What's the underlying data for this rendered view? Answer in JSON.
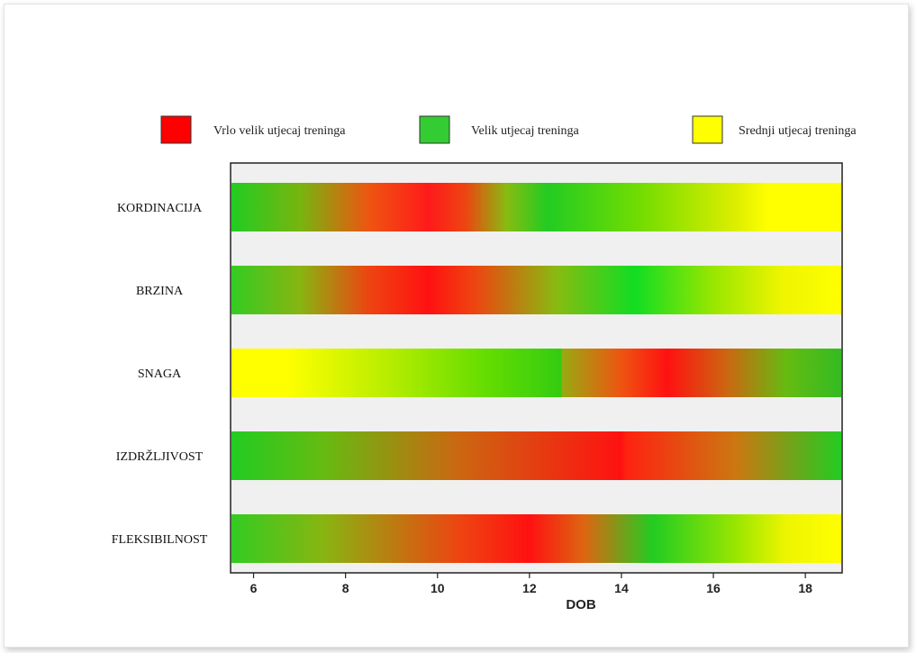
{
  "chart_data": {
    "type": "heatmap",
    "title": "",
    "xlabel": "DOB",
    "ylabel": "",
    "xlim": [
      5.5,
      18.8
    ],
    "x_ticks": [
      6,
      8,
      10,
      12,
      14,
      16,
      18
    ],
    "grid": false,
    "legend_position": "top",
    "legend": [
      {
        "label": "Vrlo velik utjecaj treninga",
        "color": "#ff0000"
      },
      {
        "label": "Velik utjecaj treninga",
        "color": "#33cc33"
      },
      {
        "label": "Srednji utjecaj treninga",
        "color": "#ffff00"
      }
    ],
    "categories": [
      "KORDINACIJA",
      "BRZINA",
      "SNAGA",
      "IZDRŽLJIVOST",
      "FLEKSIBILNOST"
    ],
    "series": [
      {
        "name": "KORDINACIJA",
        "stops": [
          {
            "x": 5.5,
            "color": "#22cc22"
          },
          {
            "x": 7.0,
            "color": "#77b50f"
          },
          {
            "x": 8.5,
            "color": "#ee5511"
          },
          {
            "x": 9.8,
            "color": "#ff1a1a"
          },
          {
            "x": 10.6,
            "color": "#ee4411"
          },
          {
            "x": 11.5,
            "color": "#88bb11"
          },
          {
            "x": 12.4,
            "color": "#22cc22"
          },
          {
            "x": 14.5,
            "color": "#77dd00"
          },
          {
            "x": 16.5,
            "color": "#ddee00"
          },
          {
            "x": 17.2,
            "color": "#ffff00"
          },
          {
            "x": 18.8,
            "color": "#ffff00"
          }
        ]
      },
      {
        "name": "BRZINA",
        "stops": [
          {
            "x": 5.5,
            "color": "#33cc22"
          },
          {
            "x": 7.0,
            "color": "#88b511"
          },
          {
            "x": 8.5,
            "color": "#ee4411"
          },
          {
            "x": 9.8,
            "color": "#ff1111"
          },
          {
            "x": 10.8,
            "color": "#ee4411"
          },
          {
            "x": 12.6,
            "color": "#88bb11"
          },
          {
            "x": 14.3,
            "color": "#11dd22"
          },
          {
            "x": 16.0,
            "color": "#99e600"
          },
          {
            "x": 17.5,
            "color": "#eef500"
          },
          {
            "x": 18.8,
            "color": "#ffff00"
          }
        ]
      },
      {
        "name": "SNAGA",
        "stops": [
          {
            "x": 5.5,
            "color": "#ffff00"
          },
          {
            "x": 6.7,
            "color": "#ffff00"
          },
          {
            "x": 8.8,
            "color": "#bbee00"
          },
          {
            "x": 11.0,
            "color": "#66dd00"
          },
          {
            "x": 12.7,
            "color": "#33cc11"
          },
          {
            "x": 12.71,
            "color": "#99aa11"
          },
          {
            "x": 14.0,
            "color": "#ee5511"
          },
          {
            "x": 15.0,
            "color": "#ff1111"
          },
          {
            "x": 16.3,
            "color": "#cc6611"
          },
          {
            "x": 17.6,
            "color": "#66bb11"
          },
          {
            "x": 18.8,
            "color": "#33bb22"
          }
        ]
      },
      {
        "name": "IZDRŽLJIVOST",
        "stops": [
          {
            "x": 5.5,
            "color": "#22cc22"
          },
          {
            "x": 7.5,
            "color": "#66bb11"
          },
          {
            "x": 10.5,
            "color": "#cc6611"
          },
          {
            "x": 14.0,
            "color": "#ff1111"
          },
          {
            "x": 14.1,
            "color": "#ff2211"
          },
          {
            "x": 16.5,
            "color": "#cc7711"
          },
          {
            "x": 18.8,
            "color": "#22cc22"
          }
        ]
      },
      {
        "name": "FLEKSIBILNOST",
        "stops": [
          {
            "x": 5.5,
            "color": "#33cc22"
          },
          {
            "x": 7.5,
            "color": "#88b511"
          },
          {
            "x": 10.5,
            "color": "#ee4411"
          },
          {
            "x": 12.0,
            "color": "#ff1111"
          },
          {
            "x": 13.2,
            "color": "#dd6611"
          },
          {
            "x": 14.7,
            "color": "#22cc22"
          },
          {
            "x": 16.5,
            "color": "#99e600"
          },
          {
            "x": 17.6,
            "color": "#eef500"
          },
          {
            "x": 18.8,
            "color": "#ffff00"
          }
        ]
      }
    ]
  }
}
